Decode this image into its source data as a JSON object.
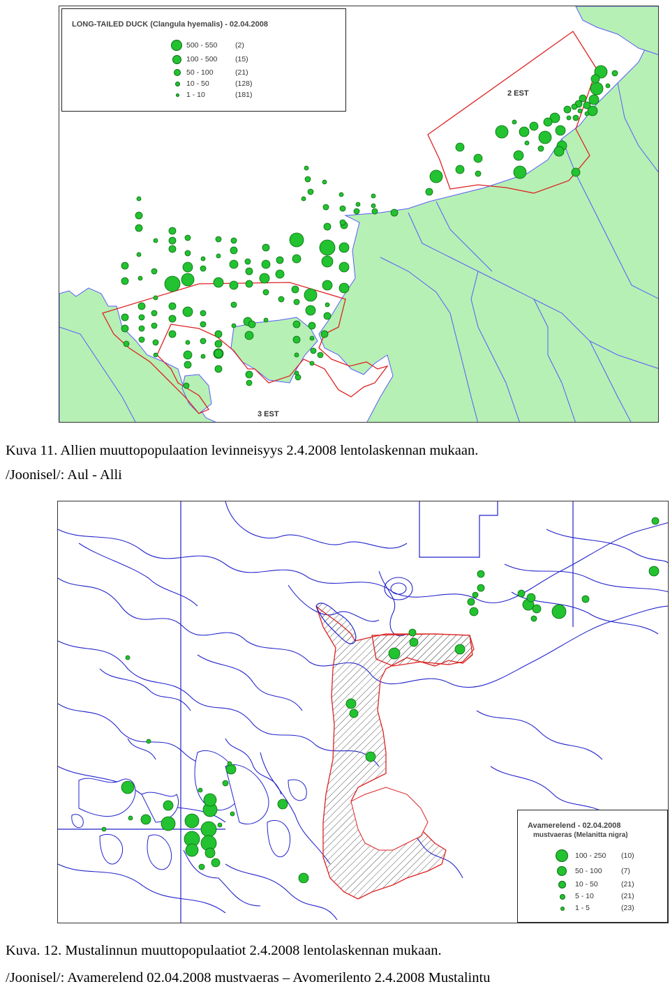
{
  "map1": {
    "legend": {
      "title": "LONG-TAILED DUCK (Clangula hyemalis) - 02.04.2008",
      "classes": [
        {
          "range": "500 - 550",
          "count": "(2)"
        },
        {
          "range": "100 - 500",
          "count": "(15)"
        },
        {
          "range": "50 - 100",
          "count": "(21)"
        },
        {
          "range": "10 - 50",
          "count": "(128)"
        },
        {
          "range": "1 - 10",
          "count": "(181)"
        }
      ]
    },
    "labels": {
      "area2": "2 EST",
      "area3": "3 EST"
    },
    "colors": {
      "land": "#b6f0b4",
      "sea": "#ffffff",
      "boundary": "#5a5aff",
      "survey_area": "#dd2222",
      "bird": "#22c230"
    }
  },
  "caption1": {
    "line1": "Kuva 11. Allien muuttopopulaation levinneisyys 2.4.2008 lentolaskennan mukaan.",
    "line2": "/Joonisel/: Aul - Alli"
  },
  "map2": {
    "legend": {
      "title": "Avamerelend - 02.04.2008",
      "subtitle": "mustvaeras (Melanitta nigra)",
      "classes": [
        {
          "range": "100 - 250",
          "count": "(10)"
        },
        {
          "range": "50 - 100",
          "count": "(7)"
        },
        {
          "range": "10 - 50",
          "count": "(21)"
        },
        {
          "range": "5 - 10",
          "count": "(21)"
        },
        {
          "range": "1 - 5",
          "count": "(23)"
        }
      ]
    },
    "colors": {
      "land": "#ffffff",
      "contour": "#2222cc",
      "hatched_area": "#dd2222",
      "bird": "#22c230"
    }
  },
  "caption2": {
    "line1": "Kuva. 12. Mustalinnun muuttopopulaatiot 2.4.2008 lentolaskennan mukaan.",
    "line2": "/Joonisel/: Avamerelend 02.04.2008 mustvaeras – Avomerilento 2.4.2008 Mustalintu"
  }
}
